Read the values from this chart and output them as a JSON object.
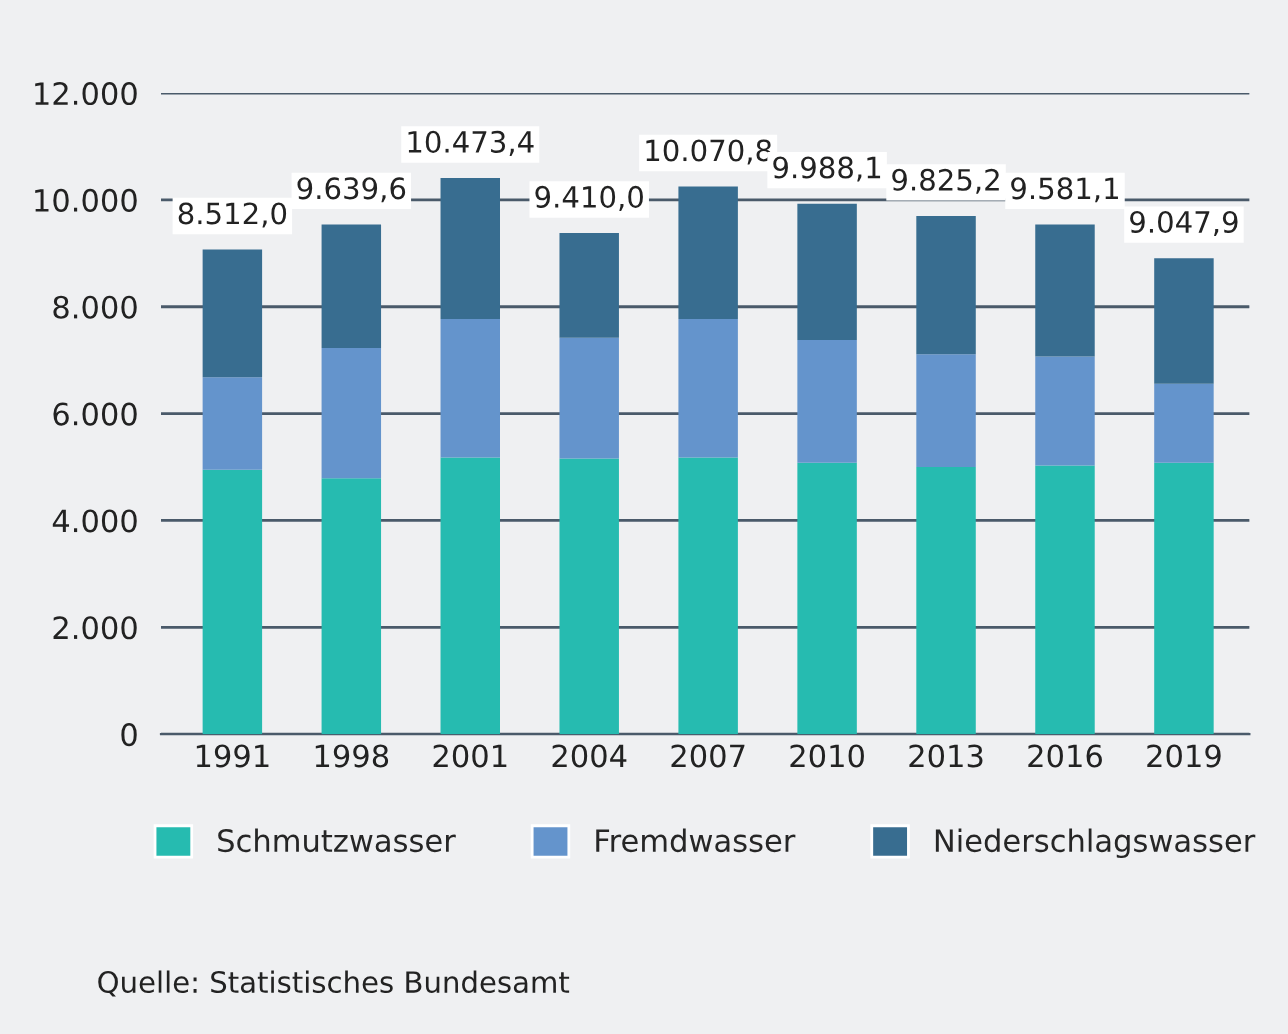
{
  "chart_data": {
    "type": "bar",
    "stacked": true,
    "categories": [
      "1991",
      "1998",
      "2001",
      "2004",
      "2007",
      "2010",
      "2013",
      "2016",
      "2019"
    ],
    "series": [
      {
        "name": "Schmutzwasser",
        "color": "#26bbb0",
        "values": [
          4950,
          4790,
          5180,
          5160,
          5180,
          5080,
          5000,
          5030,
          5080
        ]
      },
      {
        "name": "Fremdwasser",
        "color": "#6494cc",
        "values": [
          1730,
          2440,
          2590,
          2260,
          2590,
          2300,
          2110,
          2040,
          1480
        ]
      },
      {
        "name": "Niederschlagswasser",
        "color": "#386d90",
        "values": [
          2390,
          2310,
          2640,
          1960,
          2480,
          2550,
          2590,
          2470,
          2350
        ]
      }
    ],
    "ylim": [
      0,
      12000
    ],
    "yticks": [
      {
        "value": 0,
        "label": "0"
      },
      {
        "value": 2000,
        "label": "2.000"
      },
      {
        "value": 4000,
        "label": "4.000"
      },
      {
        "value": 6000,
        "label": "6.000"
      },
      {
        "value": 8000,
        "label": "8.000"
      },
      {
        "value": 10000,
        "label": "10.000"
      },
      {
        "value": 12000,
        "label": "12.000"
      }
    ],
    "grid": "y",
    "legend": "bottom",
    "annotations": [
      {
        "text": "8.512,0",
        "x": "1991",
        "y": 9070
      },
      {
        "text": "9.639,6",
        "x": "1998",
        "y": 9540
      },
      {
        "text": "10.473,4",
        "x": "2001",
        "y": 10410
      },
      {
        "text": "9.410,0",
        "x": "2004",
        "y": 9380
      },
      {
        "text": "10.070,8",
        "x": "2007",
        "y": 10250
      },
      {
        "text": "9.988,1",
        "x": "2010",
        "y": 9930
      },
      {
        "text": "9.825,2",
        "x": "2013",
        "y": 9700
      },
      {
        "text": "9.581,1",
        "x": "2016",
        "y": 9540
      },
      {
        "text": "9.047,9",
        "x": "2019",
        "y": 8910
      },
      "Quelle: Statistisches Bundesamt"
    ]
  }
}
